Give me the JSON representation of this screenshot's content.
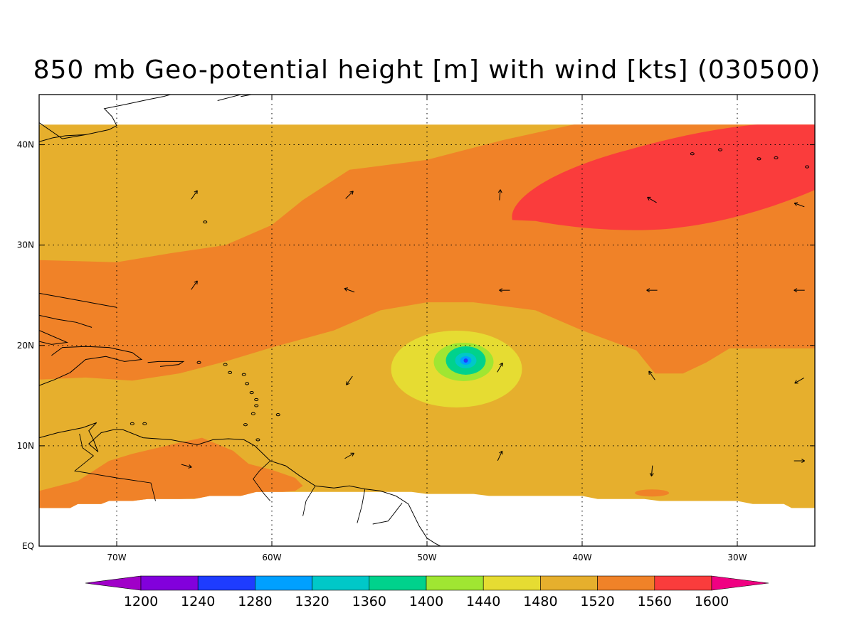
{
  "title": "850 mb Geo-potential height [m] with wind [kts] (030500)",
  "map": {
    "projection": "lat-lon",
    "lon_range": [
      -75,
      -25
    ],
    "lat_range": [
      0,
      45
    ],
    "data_lat_max": 42,
    "grid": "dotted",
    "x_ticks": [
      {
        "lon": -70,
        "label": "70W"
      },
      {
        "lon": -60,
        "label": "60W"
      },
      {
        "lon": -50,
        "label": "50W"
      },
      {
        "lon": -40,
        "label": "40W"
      },
      {
        "lon": -30,
        "label": "30W"
      }
    ],
    "y_ticks": [
      {
        "lat": 0,
        "label": "EQ"
      },
      {
        "lat": 10,
        "label": "10N"
      },
      {
        "lat": 20,
        "label": "20N"
      },
      {
        "lat": 30,
        "label": "30N"
      },
      {
        "lat": 40,
        "label": "40N"
      }
    ]
  },
  "colorbar": {
    "colors": [
      "#a000c8",
      "#8200dc",
      "#1e3cff",
      "#00a0ff",
      "#00c8c8",
      "#00d28c",
      "#a0e632",
      "#e6dc32",
      "#e6af2d",
      "#f08228",
      "#fa3c3c",
      "#f00082"
    ],
    "labels": [
      "1200",
      "1240",
      "1280",
      "1320",
      "1360",
      "1400",
      "1440",
      "1480",
      "1520",
      "1560",
      "1600"
    ]
  },
  "field": {
    "units": "m",
    "level": "850 mb",
    "cyclone_center": {
      "lon": -47.5,
      "lat": 18.5,
      "min_height": 1300
    },
    "high_center": {
      "lon": -32,
      "lat": 37,
      "max_height": 1585
    }
  },
  "wind_vectors": [
    {
      "lon": -65,
      "lat": 35,
      "dir_deg": 55
    },
    {
      "lon": -55,
      "lat": 35,
      "dir_deg": 45
    },
    {
      "lon": -45.3,
      "lat": 35,
      "dir_deg": 85
    },
    {
      "lon": -35.5,
      "lat": 34.5,
      "dir_deg": 150
    },
    {
      "lon": -26,
      "lat": 34,
      "dir_deg": 160
    },
    {
      "lon": -65,
      "lat": 26,
      "dir_deg": 55
    },
    {
      "lon": -55,
      "lat": 25.5,
      "dir_deg": 160
    },
    {
      "lon": -45,
      "lat": 25.5,
      "dir_deg": 180
    },
    {
      "lon": -35.5,
      "lat": 25.5,
      "dir_deg": 180
    },
    {
      "lon": -26,
      "lat": 25.5,
      "dir_deg": 180
    },
    {
      "lon": -55,
      "lat": 16.5,
      "dir_deg": 235
    },
    {
      "lon": -45.3,
      "lat": 17.8,
      "dir_deg": 60
    },
    {
      "lon": -35.5,
      "lat": 17,
      "dir_deg": 125
    },
    {
      "lon": -26,
      "lat": 16.5,
      "dir_deg": 210
    },
    {
      "lon": -55,
      "lat": 9,
      "dir_deg": 30
    },
    {
      "lon": -45.3,
      "lat": 9,
      "dir_deg": 65
    },
    {
      "lon": -35.5,
      "lat": 7.5,
      "dir_deg": 265
    },
    {
      "lon": -26,
      "lat": 8.5,
      "dir_deg": 0
    },
    {
      "lon": -65.5,
      "lat": 8,
      "dir_deg": 345
    }
  ],
  "legend_colors": {
    "frame": "#000000",
    "coast": "#000000"
  }
}
